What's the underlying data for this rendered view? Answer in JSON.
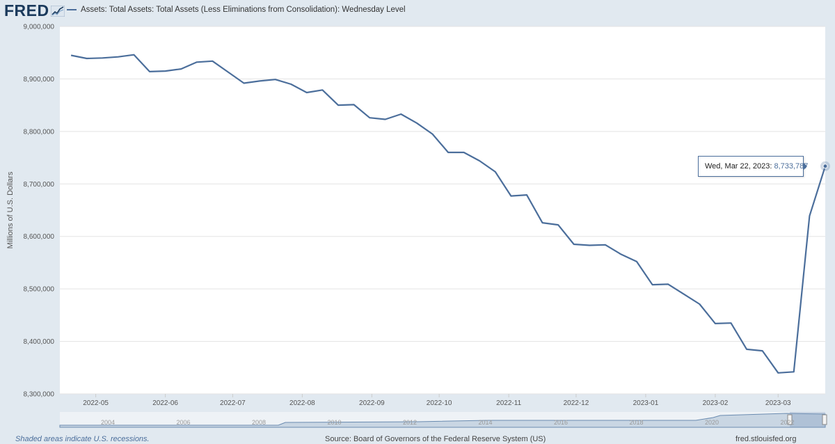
{
  "logo": {
    "text": "FRED"
  },
  "legend": {
    "label": "Assets: Total Assets: Total Assets (Less Eliminations from Consolidation): Wednesday Level"
  },
  "tooltip": {
    "date": "Wed, Mar 22, 2023:",
    "value": "8,733,787"
  },
  "footer": {
    "note": "Shaded areas indicate U.S. recessions.",
    "source": "Source: Board of Governors of the Federal Reserve System (US)",
    "site": "fred.stlouisfed.org"
  },
  "navigator": {
    "labels": [
      "2004",
      "2006",
      "2008",
      "2010",
      "2012",
      "2014",
      "2016",
      "2018",
      "2020",
      "2022"
    ]
  },
  "colors": {
    "line": "#4b6e9b",
    "background": "#e1e9f0",
    "plot": "#ffffff"
  },
  "chart_data": {
    "type": "line",
    "title": "",
    "xlabel": "",
    "ylabel": "Millions of U.S. Dollars",
    "ylim": [
      8300000,
      9000000
    ],
    "yticks": [
      "8,300,000",
      "8,400,000",
      "8,500,000",
      "8,600,000",
      "8,700,000",
      "8,800,000",
      "8,900,000",
      "9,000,000"
    ],
    "xticks": [
      "2022-05",
      "2022-06",
      "2022-07",
      "2022-08",
      "2022-09",
      "2022-10",
      "2022-11",
      "2022-12",
      "2023-01",
      "2023-02",
      "2023-03"
    ],
    "grid": true,
    "legend": "top-left",
    "series": [
      {
        "name": "Assets: Total Assets: Total Assets (Less Eliminations from Consolidation): Wednesday Level",
        "x": [
          "2022-04-20",
          "2022-04-27",
          "2022-05-04",
          "2022-05-11",
          "2022-05-18",
          "2022-05-25",
          "2022-06-01",
          "2022-06-08",
          "2022-06-15",
          "2022-06-22",
          "2022-06-29",
          "2022-07-06",
          "2022-07-13",
          "2022-07-20",
          "2022-07-27",
          "2022-08-03",
          "2022-08-10",
          "2022-08-17",
          "2022-08-24",
          "2022-08-31",
          "2022-09-07",
          "2022-09-14",
          "2022-09-21",
          "2022-09-28",
          "2022-10-05",
          "2022-10-12",
          "2022-10-19",
          "2022-10-26",
          "2022-11-02",
          "2022-11-09",
          "2022-11-16",
          "2022-11-23",
          "2022-11-30",
          "2022-12-07",
          "2022-12-14",
          "2022-12-21",
          "2022-12-28",
          "2023-01-04",
          "2023-01-11",
          "2023-01-18",
          "2023-01-25",
          "2023-02-01",
          "2023-02-08",
          "2023-02-15",
          "2023-02-22",
          "2023-03-01",
          "2023-03-08",
          "2023-03-15",
          "2023-03-22"
        ],
        "values": [
          8945000,
          8939000,
          8940000,
          8942000,
          8946000,
          8914000,
          8915000,
          8919000,
          8932000,
          8934000,
          8913000,
          8892000,
          8896000,
          8899000,
          8890000,
          8874000,
          8879000,
          8850000,
          8851000,
          8826000,
          8823000,
          8833000,
          8816000,
          8795000,
          8760000,
          8760000,
          8744000,
          8723000,
          8677000,
          8679000,
          8626000,
          8622000,
          8585000,
          8583000,
          8584000,
          8566000,
          8552000,
          8508000,
          8509000,
          8490000,
          8471000,
          8434000,
          8435000,
          8385000,
          8382000,
          8340000,
          8342000,
          8639000,
          8733787
        ]
      }
    ]
  }
}
